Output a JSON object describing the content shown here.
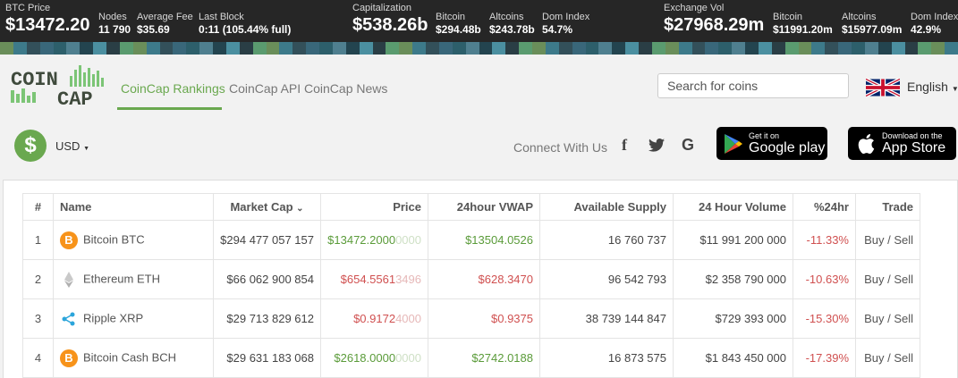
{
  "ticker": {
    "btc_price_label": "BTC Price",
    "btc_price": "$13472.20",
    "nodes_label": "Nodes",
    "nodes": "11 790",
    "avg_fee_label": "Average Fee",
    "avg_fee": "$35.69",
    "last_block_label": "Last Block",
    "last_block": "0:11 (105.44% full)",
    "cap_label": "Capitalization",
    "cap": "$538.26b",
    "cap_btc_label": "Bitcoin",
    "cap_btc": "$294.48b",
    "cap_alt_label": "Altcoins",
    "cap_alt": "$243.78b",
    "cap_dom_label": "Dom Index",
    "cap_dom": "54.7%",
    "vol_label": "Exchange Vol",
    "vol": "$27968.29m",
    "vol_btc_label": "Bitcoin",
    "vol_btc": "$11991.20m",
    "vol_alt_label": "Altcoins",
    "vol_alt": "$15977.09m",
    "vol_dom_label": "Dom Index",
    "vol_dom": "42.9%"
  },
  "nav": {
    "logo_top": "COIN",
    "logo_bottom": "CAP",
    "rankings": "CoinCap Rankings",
    "api": "CoinCap API",
    "news": "CoinCap News",
    "search_placeholder": "Search for coins",
    "language": "English"
  },
  "subbar": {
    "currency_symbol": "$",
    "currency": "USD",
    "connect": "Connect With Us",
    "facebook": "f",
    "twitter": "t",
    "google": "G",
    "google_play_small": "Get it on",
    "google_play_big": "Google play",
    "app_store_small": "Download on the",
    "app_store_big": "App Store"
  },
  "table": {
    "headers": {
      "rank": "#",
      "name": "Name",
      "market_cap": "Market Cap",
      "price": "Price",
      "vwap": "24hour VWAP",
      "supply": "Available Supply",
      "volume": "24 Hour Volume",
      "change": "%24hr",
      "trade": "Trade"
    },
    "rows": [
      {
        "rank": "1",
        "name": "Bitcoin BTC",
        "market_cap": "$294 477 057 157",
        "price": "$13472.2000",
        "price_tail": "0000",
        "vwap": "$13504.0526",
        "supply": "16 760 737",
        "volume": "$11 991 200 000",
        "change": "-11.33%",
        "trade": "Buy / Sell",
        "icon": "bitcoin-icon",
        "trend": "up"
      },
      {
        "rank": "2",
        "name": "Ethereum ETH",
        "market_cap": "$66 062 900 854",
        "price": "$654.5561",
        "price_tail": "3496",
        "vwap": "$628.3470",
        "supply": "96 542 793",
        "volume": "$2 358 790 000",
        "change": "-10.63%",
        "trade": "Buy / Sell",
        "icon": "ethereum-icon",
        "trend": "down"
      },
      {
        "rank": "3",
        "name": "Ripple XRP",
        "market_cap": "$29 713 829 612",
        "price": "$0.9172",
        "price_tail": "4000",
        "vwap": "$0.9375",
        "supply": "38 739 144 847",
        "volume": "$729 393 000",
        "change": "-15.30%",
        "trade": "Buy / Sell",
        "icon": "ripple-icon",
        "trend": "down"
      },
      {
        "rank": "4",
        "name": "Bitcoin Cash BCH",
        "market_cap": "$29 631 183 068",
        "price": "$2618.0000",
        "price_tail": "0000",
        "vwap": "$2742.0188",
        "supply": "16 873 575",
        "volume": "$1 843 450 000",
        "change": "-17.39%",
        "trade": "Buy / Sell",
        "icon": "bitcoin-cash-icon",
        "trend": "up"
      }
    ]
  },
  "colors": {
    "accent_green": "#6aa84f",
    "negative_red": "#d05050",
    "ticker_bg": "#262626"
  }
}
